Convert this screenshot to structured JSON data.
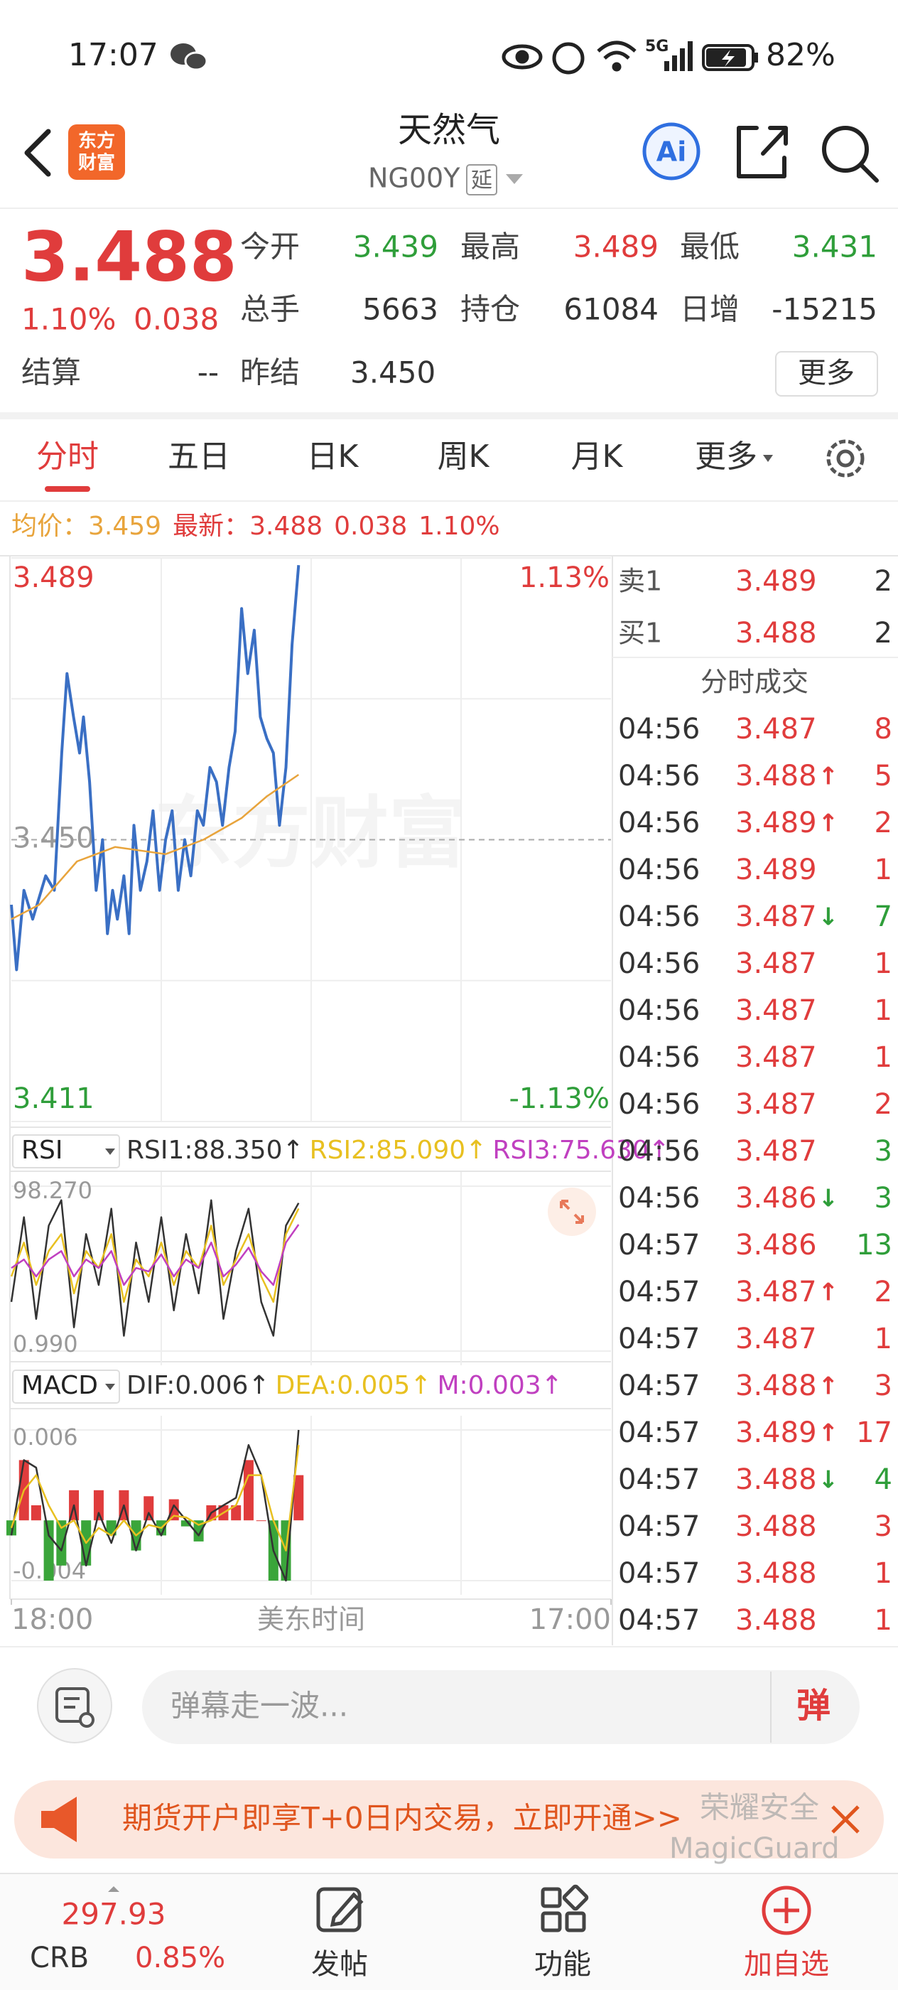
{
  "theme": {
    "up": "#e03c3c",
    "down": "#2f9e3a",
    "text": "#333333",
    "muted": "#999999"
  },
  "status_bar": {
    "time": "17:07",
    "network": "5G",
    "battery": "82%"
  },
  "header": {
    "logo": [
      "东方",
      "财富"
    ],
    "title": "天然气",
    "code": "NG00Y",
    "badge": "延",
    "ai": "Ai"
  },
  "quote": {
    "price": "3.488",
    "change_pct": "1.10%",
    "change": "0.038",
    "more_button": "更多",
    "fields": [
      [
        {
          "label": "今开",
          "value": "3.439",
          "color": "#2f9e3a"
        },
        {
          "label": "最高",
          "value": "3.489",
          "color": "#e03c3c"
        },
        {
          "label": "最低",
          "value": "3.431",
          "color": "#2f9e3a"
        }
      ],
      [
        {
          "label": "总手",
          "value": "5663",
          "color": "#333333"
        },
        {
          "label": "持仓",
          "value": "61084",
          "color": "#333333"
        },
        {
          "label": "日增",
          "value": "-15215",
          "color": "#333333"
        }
      ],
      [
        {
          "label": "结算",
          "value": "--",
          "color": "#333333"
        },
        {
          "label": "昨结",
          "value": "3.450",
          "color": "#333333"
        }
      ]
    ]
  },
  "tabs": {
    "items": [
      "分时",
      "五日",
      "日K",
      "周K",
      "月K",
      "更多"
    ],
    "active": 0
  },
  "info_line": [
    {
      "text": "均价：",
      "color": "#e8a43c"
    },
    {
      "text": "3.459",
      "color": "#e8a43c"
    },
    {
      "text": "最新：",
      "color": "#e03c3c"
    },
    {
      "text": "3.488",
      "color": "#e03c3c"
    },
    {
      "text": "0.038",
      "color": "#e03c3c"
    },
    {
      "text": "1.10%",
      "color": "#e03c3c"
    }
  ],
  "chart_watermark": "东方财富",
  "chart_data": [
    {
      "type": "line",
      "grid": true,
      "series": [
        {
          "color": "#3a6fc4",
          "x": [
            0,
            12,
            29,
            49,
            79,
            99,
            116,
            128,
            143,
            157,
            166,
            180,
            195,
            210,
            221,
            233,
            244,
            259,
            271,
            282,
            297,
            312,
            326,
            341,
            355,
            370,
            384,
            399,
            413,
            428,
            442,
            457,
            472,
            486,
            501,
            515,
            530,
            544,
            559,
            573,
            588,
            603,
            617,
            632,
            646,
            661
          ],
          "values": [
            3.441,
            3.432,
            3.443,
            3.439,
            3.445,
            3.443,
            3.462,
            3.473,
            3.467,
            3.462,
            3.467,
            3.458,
            3.443,
            3.45,
            3.437,
            3.443,
            3.439,
            3.445,
            3.437,
            3.452,
            3.443,
            3.447,
            3.454,
            3.443,
            3.45,
            3.454,
            3.443,
            3.45,
            3.445,
            3.454,
            3.452,
            3.46,
            3.458,
            3.452,
            3.46,
            3.465,
            3.482,
            3.473,
            3.479,
            3.467,
            3.464,
            3.462,
            3.452,
            3.46,
            3.477,
            3.488
          ]
        },
        {
          "color": "#e8a43c",
          "x": [
            0,
            64,
            151,
            239,
            355,
            442,
            530,
            588,
            661
          ],
          "values": [
            3.439,
            3.441,
            3.447,
            3.449,
            3.448,
            3.45,
            3.453,
            3.456,
            3.459
          ]
        }
      ],
      "xlim": [
        0,
        1380
      ],
      "xticks": [
        {
          "value": 0,
          "label": "18:00"
        },
        {
          "value": 1380,
          "label": "17:00"
        }
      ],
      "xlabel": "美东时间",
      "ylim": [
        3.411,
        3.489
      ],
      "yticks": [
        {
          "value": 3.489,
          "label": "3.489"
        },
        {
          "value": 3.45,
          "label": "3.450"
        },
        {
          "value": 3.411,
          "label": "3.411"
        }
      ],
      "ytick_colors": [
        "#e03c3c",
        "#999999",
        "#2f9e3a"
      ],
      "y2lim": [
        -1.13,
        1.13
      ],
      "y2ticks": [
        {
          "value": 1.13,
          "label": "1.13%"
        },
        {
          "value": -1.13,
          "label": "-1.13%"
        }
      ],
      "y2tick_colors": [
        "#e03c3c",
        "#2f9e3a"
      ]
    },
    {
      "type": "line",
      "grid": true,
      "selector": "RSI",
      "x": [
        0,
        29,
        57,
        86,
        115,
        144,
        172,
        201,
        230,
        259,
        287,
        316,
        345,
        374,
        402,
        431,
        460,
        488,
        517,
        546,
        575,
        603,
        632,
        661
      ],
      "xlim": [
        0,
        1380
      ],
      "ylim": [
        0.99,
        98.27
      ],
      "yticks": [
        {
          "value": 98.27,
          "label": "98.270"
        },
        {
          "value": 0.99,
          "label": "0.990"
        }
      ],
      "series": [
        {
          "name": "RSI1:88.350↑",
          "color": "#333333",
          "values": [
            30,
            80,
            20,
            75,
            90,
            15,
            70,
            40,
            85,
            10,
            65,
            30,
            80,
            25,
            70,
            35,
            90,
            20,
            60,
            85,
            30,
            10,
            75,
            88.35
          ]
        },
        {
          "name": "RSI2:85.090↑",
          "color": "#e8c020",
          "values": [
            45,
            65,
            40,
            60,
            70,
            35,
            60,
            50,
            70,
            30,
            55,
            45,
            65,
            40,
            60,
            50,
            75,
            40,
            55,
            70,
            45,
            30,
            70,
            85.09
          ]
        },
        {
          "name": "RSI3:75.630↑",
          "color": "#c040c0",
          "values": [
            50,
            55,
            45,
            55,
            60,
            45,
            55,
            50,
            60,
            40,
            50,
            48,
            58,
            45,
            55,
            50,
            65,
            45,
            52,
            62,
            48,
            40,
            65,
            75.63
          ]
        }
      ]
    },
    {
      "type": "macd",
      "grid": true,
      "selector": "MACD",
      "x": [
        0,
        29,
        57,
        86,
        115,
        144,
        172,
        201,
        230,
        259,
        287,
        316,
        345,
        374,
        402,
        431,
        460,
        488,
        517,
        546,
        575,
        603,
        632,
        661
      ],
      "xlim": [
        0,
        1380
      ],
      "ylim": [
        -0.004,
        0.006
      ],
      "yticks": [
        0.006,
        -0.004
      ],
      "series": [
        {
          "name": "DIF:0.006↑",
          "color": "#333333",
          "values": [
            -0.001,
            0.004,
            0.0035,
            -0.001,
            -0.002,
            0.001,
            -0.003,
            0.0005,
            -0.0015,
            0.001,
            -0.002,
            0.0005,
            -0.001,
            0.001,
            0,
            -0.001,
            0.0005,
            0.001,
            0.0015,
            0.005,
            0.003,
            -0.002,
            -0.004,
            0.006
          ]
        },
        {
          "name": "DEA:0.005↑",
          "color": "#e8c020",
          "values": [
            -0.0005,
            0.002,
            0.003,
            0.001,
            -0.0005,
            0,
            -0.0015,
            -0.0005,
            -0.001,
            0,
            -0.001,
            -0.0003,
            -0.0005,
            0.0003,
            0.0002,
            -0.0003,
            0,
            0.0005,
            0.001,
            0.003,
            0.003,
            0,
            -0.002,
            0.005
          ]
        }
      ],
      "bars": {
        "name": "M:0.003↑",
        "color": "#c040c0",
        "up_color": "#e03c3c",
        "down_color": "#3aa53a",
        "values": [
          -0.001,
          0.004,
          0.001,
          -0.004,
          -0.003,
          0.002,
          -0.003,
          0.002,
          -0.001,
          0.002,
          -0.002,
          0.0016,
          -0.001,
          0.0014,
          -0.0004,
          -0.0014,
          0.001,
          0.001,
          0.001,
          0.004,
          0,
          -0.004,
          -0.004,
          0.003
        ]
      }
    }
  ],
  "order_book": {
    "rows": [
      {
        "label": "卖1",
        "price": "3.489",
        "volume": "2"
      },
      {
        "label": "买1",
        "price": "3.488",
        "volume": "2"
      }
    ]
  },
  "trades": {
    "title": "分时成交",
    "rows": [
      {
        "time": "04:56",
        "price": "3.487",
        "volume": "8",
        "side": "up"
      },
      {
        "time": "04:56",
        "price": "3.488",
        "arrow": "↑",
        "volume": "5",
        "side": "up"
      },
      {
        "time": "04:56",
        "price": "3.489",
        "arrow": "↑",
        "volume": "2",
        "side": "up"
      },
      {
        "time": "04:56",
        "price": "3.489",
        "volume": "1",
        "side": "up"
      },
      {
        "time": "04:56",
        "price": "3.487",
        "arrow": "↓",
        "volume": "7",
        "side": "down"
      },
      {
        "time": "04:56",
        "price": "3.487",
        "volume": "1",
        "side": "up"
      },
      {
        "time": "04:56",
        "price": "3.487",
        "volume": "1",
        "side": "up"
      },
      {
        "time": "04:56",
        "price": "3.487",
        "volume": "1",
        "side": "up"
      },
      {
        "time": "04:56",
        "price": "3.487",
        "volume": "2",
        "side": "up"
      },
      {
        "time": "04:56",
        "price": "3.487",
        "volume": "3",
        "side": "down"
      },
      {
        "time": "04:56",
        "price": "3.486",
        "arrow": "↓",
        "volume": "3",
        "side": "down"
      },
      {
        "time": "04:57",
        "price": "3.486",
        "volume": "13",
        "side": "down"
      },
      {
        "time": "04:57",
        "price": "3.487",
        "arrow": "↑",
        "volume": "2",
        "side": "up"
      },
      {
        "time": "04:57",
        "price": "3.487",
        "volume": "1",
        "side": "up"
      },
      {
        "time": "04:57",
        "price": "3.488",
        "arrow": "↑",
        "volume": "3",
        "side": "up"
      },
      {
        "time": "04:57",
        "price": "3.489",
        "arrow": "↑",
        "volume": "17",
        "side": "up"
      },
      {
        "time": "04:57",
        "price": "3.488",
        "arrow": "↓",
        "volume": "4",
        "side": "down"
      },
      {
        "time": "04:57",
        "price": "3.488",
        "volume": "3",
        "side": "up"
      },
      {
        "time": "04:57",
        "price": "3.488",
        "volume": "1",
        "side": "up"
      },
      {
        "time": "04:57",
        "price": "3.488",
        "volume": "1",
        "side": "up"
      }
    ]
  },
  "comment_bar": {
    "placeholder": "弹幕走一波...",
    "button": "弹"
  },
  "banner": {
    "text": "期货开户即享T+0日内交易，立即开通>>"
  },
  "watermark": [
    "荣耀安全",
    "MagicGuard"
  ],
  "bottom_nav": {
    "index": {
      "value": "297.93",
      "name": "CRB",
      "change": "0.85%"
    },
    "items": [
      "发帖",
      "功能",
      "加自选"
    ],
    "highlight": 2
  }
}
